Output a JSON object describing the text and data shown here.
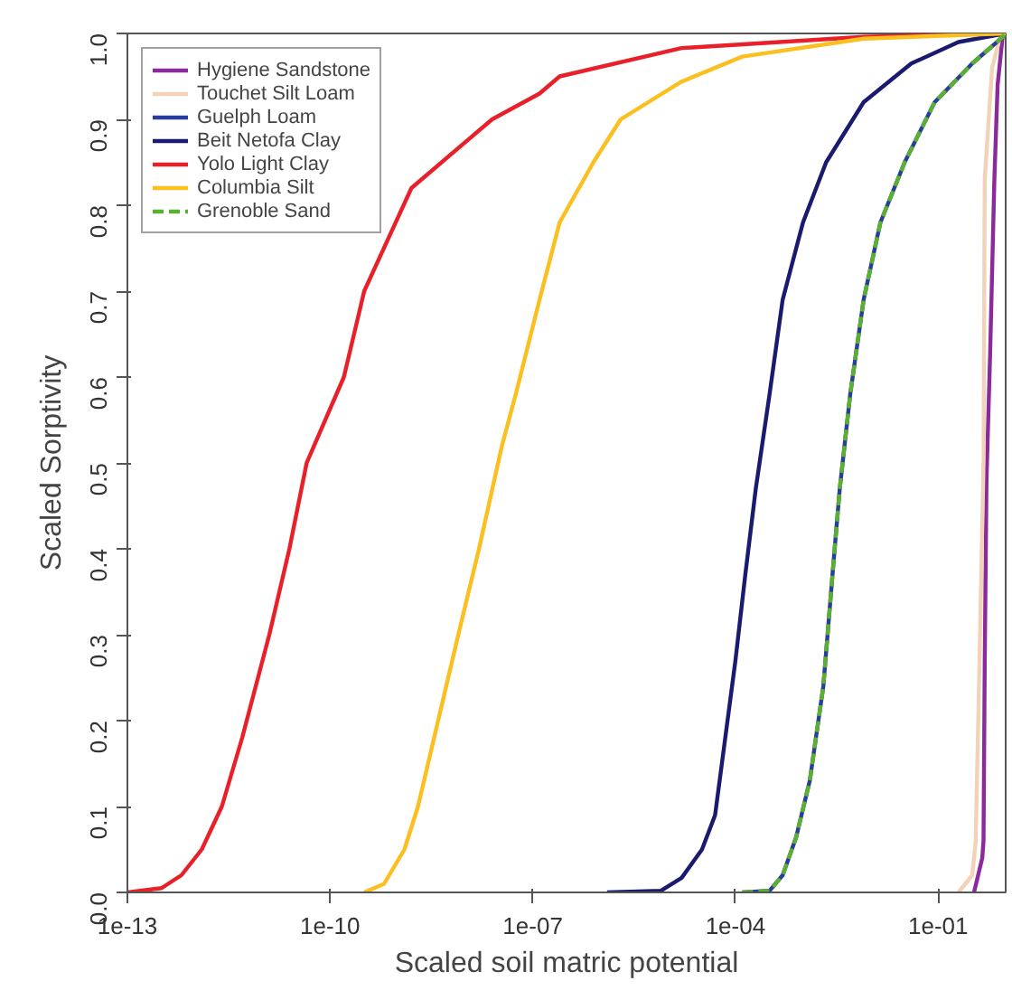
{
  "chart_data": {
    "type": "line",
    "xlabel": "Scaled soil matric potential",
    "ylabel": "Scaled Sorptivity",
    "log": "x",
    "xlim": [
      1e-13,
      1
    ],
    "ylim": [
      0,
      1
    ],
    "xticks": [
      {
        "value": 1e-13,
        "label": "1e-13"
      },
      {
        "value": 1e-10,
        "label": "1e-10"
      },
      {
        "value": 1e-07,
        "label": "1e-07"
      },
      {
        "value": 0.0001,
        "label": "1e-04"
      },
      {
        "value": 0.1,
        "label": "1e-01"
      }
    ],
    "yticks": [
      {
        "value": 0,
        "label": "0.0"
      },
      0.1,
      0.2,
      0.3,
      0.4,
      0.5,
      0.6,
      0.7,
      0.8,
      0.9,
      {
        "value": 1,
        "label": "1.0"
      }
    ],
    "grid": false,
    "legend": "top left",
    "marker": "none",
    "series": [
      {
        "name": "Hygiene Sandstone",
        "color": "#8b2a9a",
        "x": [
          0.34,
          0.45,
          0.47,
          0.49,
          0.52,
          0.59,
          0.68,
          0.76,
          0.91
        ],
        "values": [
          0,
          0.04,
          0.06,
          0.27,
          0.48,
          0.63,
          0.83,
          0.94,
          1.0
        ]
      },
      {
        "name": "Touchet Silt Loam",
        "color": "#f2d2b8",
        "x": [
          0.2,
          0.32,
          0.36,
          0.41,
          0.47,
          0.49,
          0.63,
          0.85
        ],
        "values": [
          0,
          0.02,
          0.06,
          0.27,
          0.5,
          0.83,
          0.96,
          1.0
        ]
      },
      {
        "name": "Guelph Loam",
        "color": "#2a3d9c",
        "x": [
          0.000126,
          0.00032,
          0.0005,
          0.00079,
          0.00126,
          0.002,
          0.0028,
          0.0035,
          0.005,
          0.0079,
          0.014,
          0.032,
          0.089,
          0.32,
          0.85,
          1
        ],
        "values": [
          0,
          0.002,
          0.02,
          0.064,
          0.13,
          0.24,
          0.38,
          0.47,
          0.58,
          0.69,
          0.78,
          0.85,
          0.92,
          0.965,
          0.994,
          1.0
        ]
      },
      {
        "name": "Beit Netofa Clay",
        "color": "#1a1a6e",
        "x": [
          1.26e-06,
          7.9e-06,
          1.6e-05,
          3.2e-05,
          5e-05,
          6.3e-05,
          0.0001,
          0.00014,
          0.0002,
          0.00032,
          0.0005,
          0.001,
          0.0022,
          0.0079,
          0.04,
          0.2,
          1
        ],
        "values": [
          0,
          0.002,
          0.017,
          0.05,
          0.09,
          0.15,
          0.27,
          0.37,
          0.47,
          0.58,
          0.69,
          0.78,
          0.85,
          0.92,
          0.965,
          0.99,
          1.0
        ]
      },
      {
        "name": "Yolo Light Clay",
        "color": "#e8202a",
        "x": [
          1e-13,
          3.2e-13,
          6.3e-13,
          1.26e-12,
          2.5e-12,
          5e-12,
          1.26e-11,
          2.5e-11,
          4.5e-11,
          1.6e-10,
          3.2e-10,
          1.6e-09,
          2.5e-08,
          1.26e-07,
          2.5e-07,
          1.6e-05,
          0.0079,
          1
        ],
        "values": [
          0,
          0.005,
          0.02,
          0.05,
          0.1,
          0.18,
          0.3,
          0.4,
          0.5,
          0.6,
          0.7,
          0.82,
          0.9,
          0.93,
          0.95,
          0.983,
          0.996,
          1.0
        ]
      },
      {
        "name": "Columbia Silt",
        "color": "#fbbf20",
        "x": [
          3.2e-10,
          6.3e-10,
          1.26e-09,
          2e-09,
          7.9e-09,
          1.6e-08,
          3.5e-08,
          5.6e-08,
          1.26e-07,
          2.5e-07,
          7.9e-07,
          2e-06,
          1.6e-05,
          0.000126,
          0.0079,
          1
        ],
        "values": [
          0,
          0.01,
          0.05,
          0.1,
          0.3,
          0.4,
          0.52,
          0.58,
          0.69,
          0.78,
          0.85,
          0.9,
          0.944,
          0.973,
          0.994,
          1.0
        ]
      },
      {
        "name": "Grenoble Sand",
        "color": "#5ab030",
        "line_style": "dashed",
        "x": [
          0.000126,
          0.00032,
          0.0005,
          0.00079,
          0.00126,
          0.002,
          0.0028,
          0.0035,
          0.005,
          0.0079,
          0.014,
          0.032,
          0.089,
          0.32,
          0.85,
          1
        ],
        "values": [
          0,
          0.002,
          0.02,
          0.064,
          0.13,
          0.24,
          0.38,
          0.47,
          0.58,
          0.69,
          0.78,
          0.85,
          0.92,
          0.965,
          0.994,
          1.0
        ]
      }
    ]
  }
}
